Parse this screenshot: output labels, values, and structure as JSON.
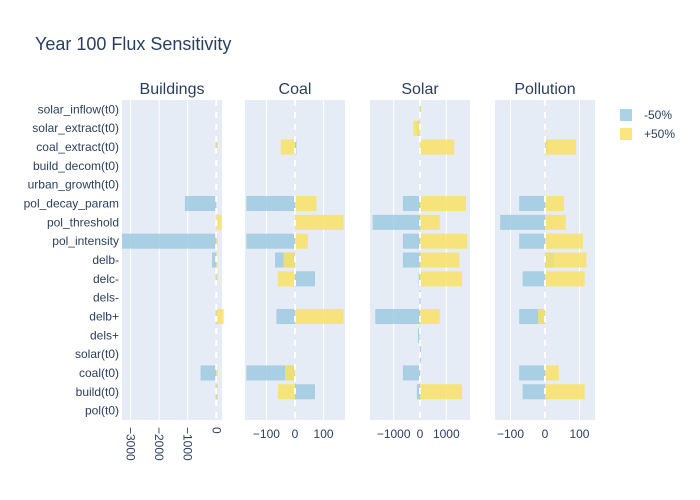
{
  "chart_data": {
    "type": "bar",
    "orientation": "horizontal",
    "barmode": "overlay",
    "title": "Year 100 Flux Sensitivity",
    "categories": [
      "solar_inflow(t0)",
      "solar_extract(t0)",
      "coal_extract(t0)",
      "build_decom(t0)",
      "urban_growth(t0)",
      "pol_decay_param",
      "pol_threshold",
      "pol_intensity",
      "delb-",
      "delc-",
      "dels-",
      "delb+",
      "dels+",
      "solar(t0)",
      "coal(t0)",
      "build(t0)",
      "pol(t0)"
    ],
    "legend": {
      "placement": "top-right",
      "entries": [
        {
          "name": "-50%",
          "color": "#9ecae1"
        },
        {
          "name": "+50%",
          "color": "#f9e265"
        }
      ]
    },
    "panels": [
      {
        "name": "Buildings",
        "xlim": [
          -3300,
          200
        ],
        "ticks": [
          -3000,
          -2000,
          -1000,
          0
        ],
        "tick_labels": [
          "−3000",
          "−2000",
          "−1000",
          "0"
        ],
        "tick_angle": 90,
        "series": [
          {
            "name": "-50%",
            "values": [
              0,
              0,
              -20,
              0,
              0,
              -1100,
              0,
              -3300,
              -150,
              -20,
              0,
              -20,
              0,
              0,
              -550,
              -20,
              0
            ]
          },
          {
            "name": "+50%",
            "values": [
              0,
              0,
              50,
              0,
              0,
              0,
              180,
              60,
              40,
              50,
              0,
              260,
              0,
              0,
              50,
              60,
              0
            ]
          }
        ]
      },
      {
        "name": "Coal",
        "xlim": [
          -175,
          175
        ],
        "ticks": [
          -100,
          0,
          100
        ],
        "tick_labels": [
          "−100",
          "0",
          "100"
        ],
        "tick_angle": 0,
        "series": [
          {
            "name": "-50%",
            "values": [
              0,
              0,
              5,
              0,
              0,
              -170,
              0,
              -170,
              -70,
              70,
              0,
              -65,
              0,
              0,
              -170,
              70,
              0
            ]
          },
          {
            "name": "+50%",
            "values": [
              0,
              0,
              -50,
              0,
              0,
              75,
              170,
              45,
              -40,
              -60,
              0,
              170,
              0,
              0,
              -35,
              -60,
              0
            ]
          }
        ]
      },
      {
        "name": "Solar",
        "xlim": [
          -1900,
          1900
        ],
        "ticks": [
          -1000,
          0,
          1000
        ],
        "tick_labels": [
          "−1000",
          "0",
          "1000"
        ],
        "tick_angle": 0,
        "series": [
          {
            "name": "-50%",
            "values": [
              15,
              -120,
              0,
              0,
              0,
              -650,
              -1800,
              -650,
              -650,
              -50,
              -20,
              -1700,
              -80,
              30,
              -650,
              -120,
              0
            ]
          },
          {
            "name": "+50%",
            "values": [
              -10,
              -250,
              1300,
              0,
              0,
              1750,
              750,
              1800,
              1500,
              1600,
              0,
              750,
              -40,
              0,
              0,
              1600,
              0
            ]
          }
        ]
      },
      {
        "name": "Pollution",
        "xlim": [
          -145,
          145
        ],
        "ticks": [
          -100,
          0,
          100
        ],
        "tick_labels": [
          "−100",
          "0",
          "100"
        ],
        "tick_angle": 0,
        "series": [
          {
            "name": "-50%",
            "values": [
              0,
              0,
              10,
              0,
              0,
              -75,
              -130,
              -75,
              25,
              -65,
              0,
              -75,
              0,
              0,
              -75,
              -65,
              0
            ]
          },
          {
            "name": "+50%",
            "values": [
              0,
              0,
              90,
              0,
              0,
              55,
              60,
              110,
              120,
              115,
              0,
              -20,
              0,
              0,
              40,
              115,
              0
            ]
          }
        ]
      }
    ]
  }
}
